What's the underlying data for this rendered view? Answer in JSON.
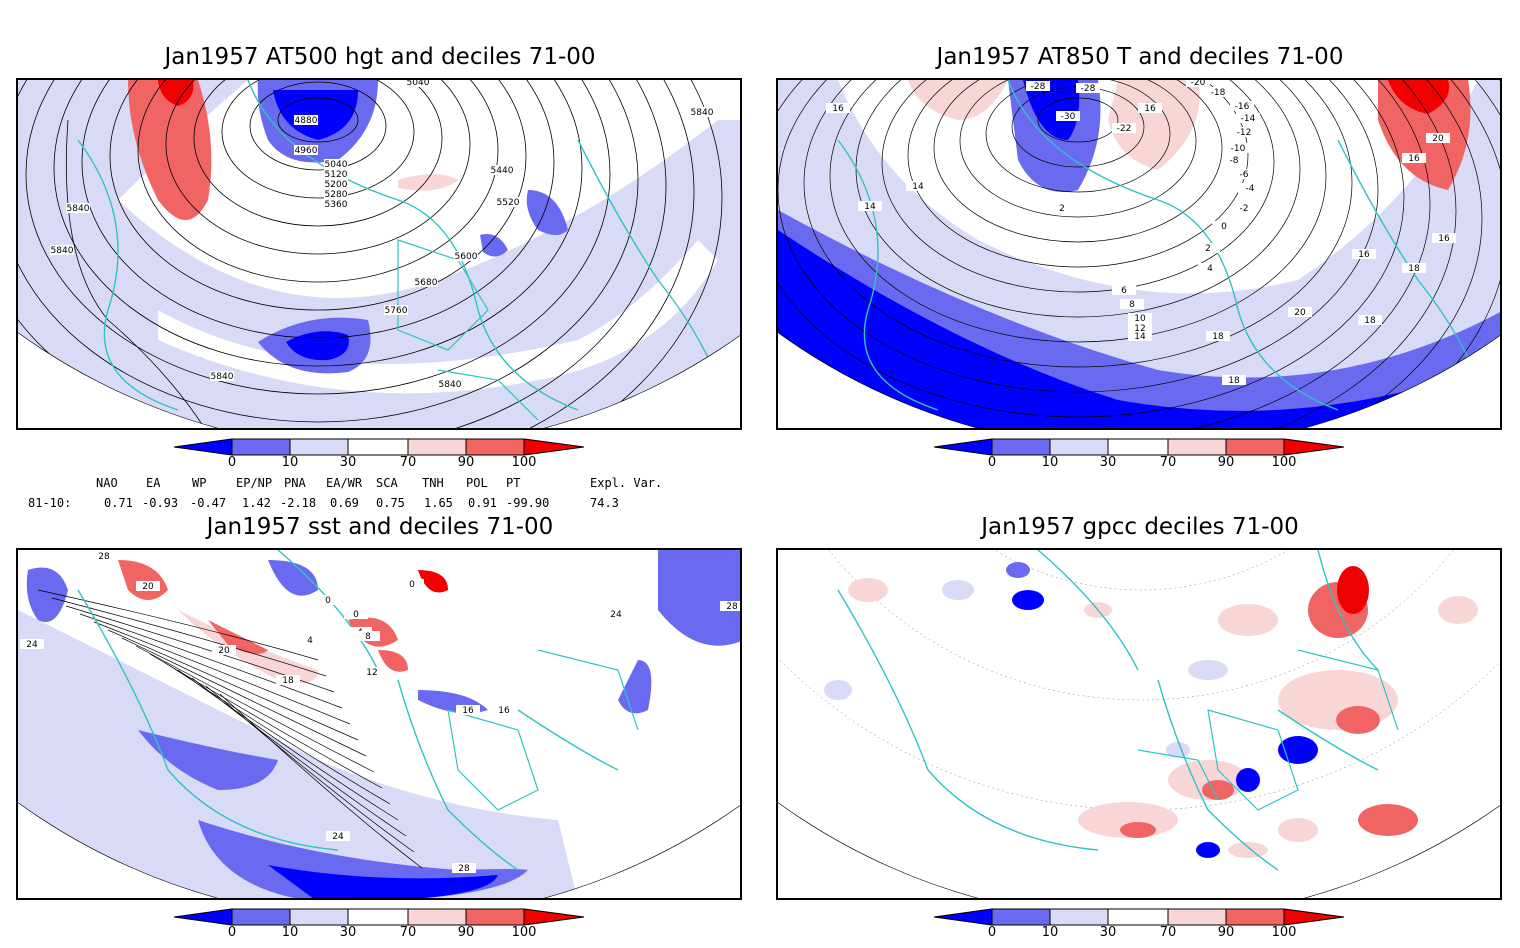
{
  "panels": {
    "tl": {
      "title": "Jan1957 AT500 hgt and deciles 71-00",
      "contour_labels": [
        "5040",
        "4880",
        "4960",
        "5040",
        "5120",
        "5200",
        "5280",
        "5360",
        "5440",
        "5520",
        "5600",
        "5680",
        "5760",
        "5840",
        "5840",
        "5840",
        "5840",
        "5840"
      ]
    },
    "tr": {
      "title": "Jan1957 AT850 T and deciles 71-00",
      "contour_labels": [
        "-28",
        "-28",
        "-30",
        "-22",
        "-20",
        "-18",
        "-16",
        "-14",
        "-12",
        "-10",
        "-8",
        "-6",
        "-4",
        "-2",
        "0",
        "2",
        "2",
        "4",
        "6",
        "8",
        "10",
        "12",
        "14",
        "16",
        "16",
        "16",
        "14",
        "14",
        "18",
        "18",
        "18",
        "18",
        "20",
        "20",
        "16",
        "16"
      ]
    },
    "bl": {
      "title": "Jan1957 sst and deciles 71-00",
      "contour_labels": [
        "28",
        "20",
        "24",
        "20",
        "0",
        "0",
        "4",
        "8",
        "0",
        "4",
        "12",
        "16",
        "18",
        "16",
        "24",
        "28",
        "24",
        "28"
      ]
    },
    "br": {
      "title": "Jan1957 gpcc deciles 71-00",
      "contour_labels": []
    }
  },
  "colorbar": {
    "ticks": [
      "0",
      "10",
      "30",
      "70",
      "90",
      "100"
    ]
  },
  "indices": {
    "headers": [
      "NAO",
      "EA",
      "WP",
      "EP/NP",
      "PNA",
      "EA/WR",
      "SCA",
      "TNH",
      "POL",
      "PT",
      "Expl. Var."
    ],
    "row_label": "81-10:",
    "values": [
      "0.71",
      "-0.93",
      "-0.47",
      "1.42",
      "-2.18",
      "0.69",
      "0.75",
      "1.65",
      "0.91",
      "-99.90",
      "74.3"
    ]
  },
  "colors": {
    "strong_blue": "#0000ff",
    "mid_blue": "#6a6af0",
    "light_blue": "#d8daf6",
    "light_red": "#f8d6d6",
    "mid_red": "#f06464",
    "strong_red": "#f00000",
    "coast": "#2ec4c4"
  }
}
